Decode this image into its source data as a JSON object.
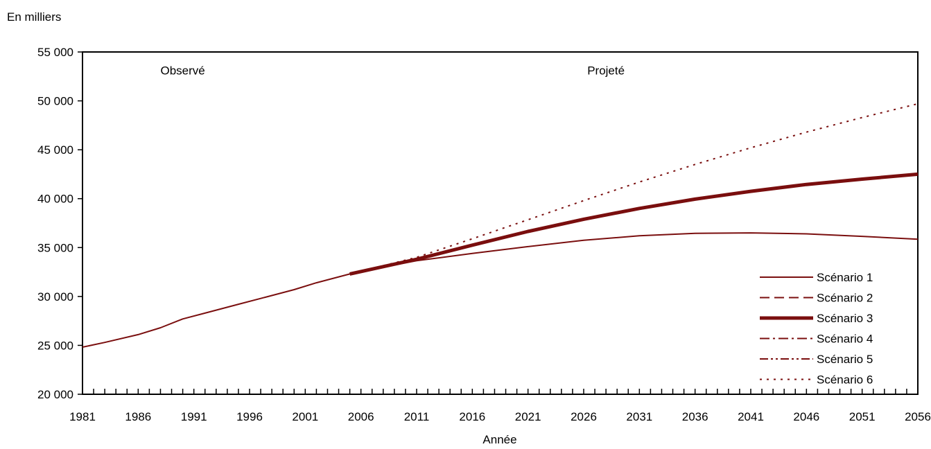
{
  "chart_data": {
    "type": "line",
    "ylabel": "En milliers",
    "xlabel": "Année",
    "xlim": [
      1981,
      2056
    ],
    "ylim": [
      20000,
      55000
    ],
    "xticks": [
      1981,
      1986,
      1991,
      1996,
      2001,
      2006,
      2011,
      2016,
      2021,
      2026,
      2031,
      2036,
      2041,
      2046,
      2051,
      2056
    ],
    "xtick_labels": [
      "1981",
      "1986",
      "1991",
      "1996",
      "2001",
      "2006",
      "2011",
      "2016",
      "2021",
      "2026",
      "2031",
      "2036",
      "2041",
      "2046",
      "2051",
      "2056"
    ],
    "yticks": [
      20000,
      25000,
      30000,
      35000,
      40000,
      45000,
      50000,
      55000
    ],
    "ytick_labels": [
      "20 000",
      "25 000",
      "30 000",
      "35 000",
      "40 000",
      "45 000",
      "50 000",
      "55 000"
    ],
    "annotations": [
      {
        "text": "Observé",
        "x": 1990,
        "y": 52700
      },
      {
        "text": "Projeté",
        "x": 2028,
        "y": 52700
      }
    ],
    "legend_position": "bottom-right",
    "color": "#7a0e0e",
    "series": [
      {
        "name": "Observé",
        "style": "solid",
        "width": 2,
        "x": [
          1981,
          1983,
          1986,
          1988,
          1990,
          1992,
          1995,
          1997,
          2000,
          2002,
          2005
        ],
        "y": [
          24820,
          25300,
          26100,
          26800,
          27700,
          28300,
          29200,
          29800,
          30700,
          31400,
          32300
        ]
      },
      {
        "name": "Scénario 1",
        "style": "solid",
        "width": 2,
        "x": [
          2005,
          2008,
          2011,
          2016,
          2021,
          2026,
          2031,
          2036,
          2041,
          2046,
          2051,
          2056
        ],
        "y": [
          32300,
          33000,
          33650,
          34400,
          35100,
          35750,
          36200,
          36450,
          36500,
          36400,
          36150,
          35850
        ]
      },
      {
        "name": "Scénario 2",
        "style": "dashed",
        "width": 2,
        "x": [
          2005,
          2008,
          2011,
          2016,
          2021,
          2026,
          2031,
          2036,
          2041,
          2046,
          2051,
          2056
        ],
        "y": [
          32300,
          33050,
          33800,
          35200,
          36600,
          37850,
          38950,
          39900,
          40700,
          41400,
          41950,
          42450
        ]
      },
      {
        "name": "Scénario 3",
        "style": "thick",
        "width": 5,
        "x": [
          2005,
          2008,
          2011,
          2016,
          2021,
          2026,
          2031,
          2036,
          2041,
          2046,
          2051,
          2056
        ],
        "y": [
          32300,
          33050,
          33800,
          35250,
          36650,
          37900,
          39000,
          39950,
          40750,
          41450,
          42000,
          42500
        ]
      },
      {
        "name": "Scénario 4",
        "style": "dashdot",
        "width": 2,
        "x": [
          2005,
          2008,
          2011,
          2016,
          2021,
          2026,
          2031,
          2036,
          2041,
          2046,
          2051,
          2056
        ],
        "y": [
          32300,
          33050,
          33800,
          35200,
          36600,
          37850,
          38950,
          39900,
          40700,
          41400,
          41950,
          42450
        ]
      },
      {
        "name": "Scénario 5",
        "style": "dashdotdot",
        "width": 2,
        "x": [
          2005,
          2008,
          2011,
          2016,
          2021,
          2026,
          2031,
          2036,
          2041,
          2046,
          2051,
          2056
        ],
        "y": [
          32300,
          33050,
          33800,
          35200,
          36600,
          37850,
          38950,
          39900,
          40700,
          41400,
          41950,
          42450
        ]
      },
      {
        "name": "Scénario 6",
        "style": "dotted",
        "width": 2,
        "x": [
          2005,
          2008,
          2011,
          2016,
          2021,
          2026,
          2031,
          2036,
          2041,
          2046,
          2051,
          2056
        ],
        "y": [
          32300,
          33150,
          34000,
          35900,
          37850,
          39800,
          41700,
          43500,
          45200,
          46800,
          48300,
          49700
        ]
      }
    ]
  }
}
